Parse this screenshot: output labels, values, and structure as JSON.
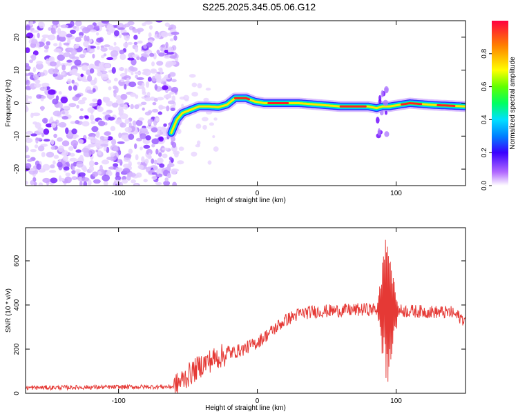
{
  "title": "S225.2025.345.05.06.G12",
  "colors": {
    "snr_line": "#e53935",
    "axis": "#000000"
  },
  "chart_data": [
    {
      "type": "heatmap",
      "name": "spectrogram",
      "xlabel": "Height of straight line (km)",
      "ylabel": "Frequency (Hz)",
      "xlim": [
        -167,
        150
      ],
      "ylim": [
        -25,
        25
      ],
      "xticks": [
        -100,
        0,
        100
      ],
      "yticks": [
        -20,
        -10,
        0,
        10,
        20
      ],
      "noise_region_x": [
        -167,
        -58
      ],
      "ridge": [
        {
          "x": -62,
          "y": -9
        },
        {
          "x": -58,
          "y": -5
        },
        {
          "x": -54,
          "y": -3
        },
        {
          "x": -48,
          "y": -2
        },
        {
          "x": -42,
          "y": -1
        },
        {
          "x": -35,
          "y": -1
        },
        {
          "x": -28,
          "y": -1.2
        },
        {
          "x": -22,
          "y": -0.5
        },
        {
          "x": -16,
          "y": 1.5
        },
        {
          "x": -8,
          "y": 1.5
        },
        {
          "x": -2,
          "y": 0.5
        },
        {
          "x": 5,
          "y": 0
        },
        {
          "x": 30,
          "y": 0
        },
        {
          "x": 60,
          "y": -1
        },
        {
          "x": 80,
          "y": -1
        },
        {
          "x": 86,
          "y": -1.5
        },
        {
          "x": 90,
          "y": -1
        },
        {
          "x": 95,
          "y": -1
        },
        {
          "x": 110,
          "y": 0
        },
        {
          "x": 125,
          "y": -0.5
        },
        {
          "x": 150,
          "y": -1
        }
      ]
    },
    {
      "type": "line",
      "name": "snr",
      "xlabel": "Height of straight line (km)",
      "ylabel": "SNR (10 * v/v)",
      "xlim": [
        -167,
        150
      ],
      "ylim": [
        0,
        750
      ],
      "xticks": [
        -100,
        0,
        100
      ],
      "yticks": [
        0,
        200,
        400,
        600
      ],
      "baseline": [
        {
          "x": -167,
          "y": 25
        },
        {
          "x": -60,
          "y": 30
        },
        {
          "x": -50,
          "y": 80
        },
        {
          "x": -40,
          "y": 130
        },
        {
          "x": -30,
          "y": 160
        },
        {
          "x": -20,
          "y": 180
        },
        {
          "x": -10,
          "y": 200
        },
        {
          "x": 0,
          "y": 230
        },
        {
          "x": 10,
          "y": 280
        },
        {
          "x": 20,
          "y": 330
        },
        {
          "x": 30,
          "y": 360
        },
        {
          "x": 40,
          "y": 370
        },
        {
          "x": 60,
          "y": 375
        },
        {
          "x": 80,
          "y": 380
        },
        {
          "x": 100,
          "y": 375
        },
        {
          "x": 120,
          "y": 370
        },
        {
          "x": 140,
          "y": 365
        },
        {
          "x": 150,
          "y": 330
        }
      ],
      "spike_x": [
        86,
        102
      ],
      "spike_peak": 750
    },
    {
      "type": "colorbar",
      "name": "colorbar",
      "label": "Normalized spectral amplitude",
      "ticks": [
        "0.0",
        "0.2",
        "0.4",
        "0.6",
        "0.8"
      ],
      "range": [
        0,
        1
      ]
    }
  ]
}
